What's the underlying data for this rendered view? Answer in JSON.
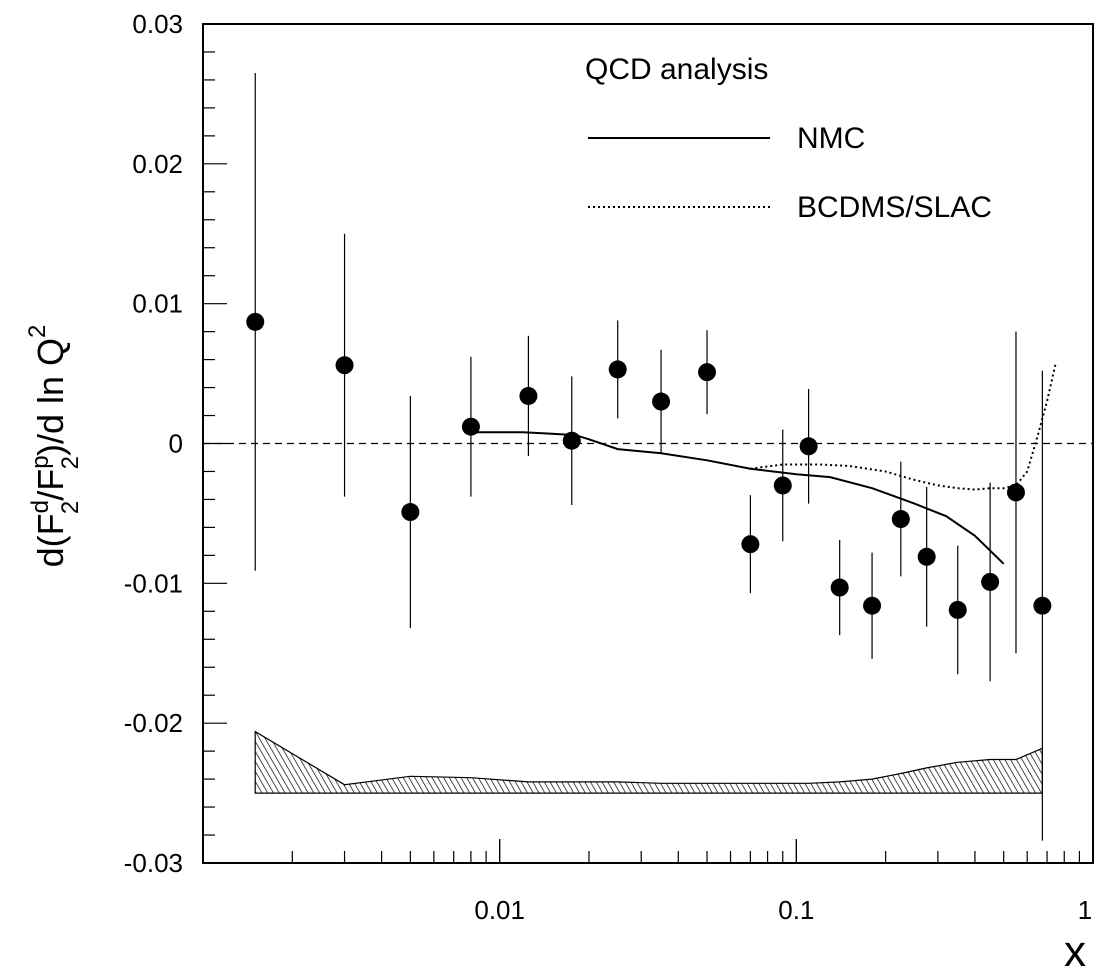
{
  "chart_data": {
    "type": "scatter",
    "xscale": "log",
    "xlim": [
      0.001,
      1
    ],
    "ylim": [
      -0.03,
      0.03
    ],
    "xlabel": "x",
    "ylabel": {
      "prefix": "d(F",
      "num_sup": "d",
      "num_sub": "2",
      "mid": "/F",
      "den_sup": "p",
      "den_sub": "2",
      "suffix": ")/d ln Q",
      "q_sup": "2"
    },
    "legend": {
      "title": "QCD analysis",
      "placement": "top-right",
      "entries": [
        {
          "label": "NMC",
          "style": "solid"
        },
        {
          "label": "BCDMS/SLAC",
          "style": "dotted"
        }
      ]
    },
    "x_ticks": [
      {
        "value": 0.01,
        "label": "0.01"
      },
      {
        "value": 0.1,
        "label": "0.1"
      },
      {
        "value": 1,
        "label": "1"
      }
    ],
    "y_ticks": [
      {
        "value": 0.03,
        "label": "0.03"
      },
      {
        "value": 0.02,
        "label": "0.02"
      },
      {
        "value": 0.01,
        "label": "0.01"
      },
      {
        "value": 0,
        "label": "0"
      },
      {
        "value": -0.01,
        "label": "-0.01"
      },
      {
        "value": -0.02,
        "label": "-0.02"
      },
      {
        "value": -0.03,
        "label": "-0.03"
      }
    ],
    "zero_line": true,
    "points": [
      {
        "x": 0.0015,
        "y": 0.0087,
        "err": 0.0178
      },
      {
        "x": 0.003,
        "y": 0.0056,
        "err": 0.0094
      },
      {
        "x": 0.005,
        "y": -0.0049,
        "err": 0.0083
      },
      {
        "x": 0.008,
        "y": 0.0012,
        "err": 0.005
      },
      {
        "x": 0.0125,
        "y": 0.0034,
        "err": 0.0043
      },
      {
        "x": 0.0175,
        "y": 0.0002,
        "err": 0.0046
      },
      {
        "x": 0.025,
        "y": 0.0053,
        "err": 0.0035
      },
      {
        "x": 0.035,
        "y": 0.003,
        "err": 0.0037
      },
      {
        "x": 0.05,
        "y": 0.0051,
        "err": 0.003
      },
      {
        "x": 0.07,
        "y": -0.0072,
        "err": 0.0035
      },
      {
        "x": 0.09,
        "y": -0.003,
        "err": 0.004
      },
      {
        "x": 0.11,
        "y": -0.0002,
        "err": 0.0041
      },
      {
        "x": 0.14,
        "y": -0.0103,
        "err": 0.0034
      },
      {
        "x": 0.18,
        "y": -0.0116,
        "err": 0.0038
      },
      {
        "x": 0.225,
        "y": -0.0054,
        "err": 0.0041
      },
      {
        "x": 0.275,
        "y": -0.0081,
        "err": 0.005
      },
      {
        "x": 0.35,
        "y": -0.0119,
        "err": 0.0046
      },
      {
        "x": 0.45,
        "y": -0.0099,
        "err": 0.0071
      },
      {
        "x": 0.55,
        "y": -0.0035,
        "err": 0.0115
      },
      {
        "x": 0.675,
        "y": -0.0116,
        "err": 0.0168
      }
    ],
    "series": [
      {
        "name": "NMC",
        "style": "solid",
        "x": [
          0.008,
          0.012,
          0.015,
          0.018,
          0.02,
          0.025,
          0.035,
          0.05,
          0.07,
          0.1,
          0.13,
          0.18,
          0.25,
          0.32,
          0.4,
          0.5
        ],
        "y": [
          0.0008,
          0.0008,
          0.0007,
          0.0006,
          0.0003,
          -0.0004,
          -0.0007,
          -0.0012,
          -0.0018,
          -0.0022,
          -0.0024,
          -0.0032,
          -0.0043,
          -0.0052,
          -0.0066,
          -0.0086
        ]
      },
      {
        "name": "BCDMS/SLAC",
        "style": "dotted",
        "x": [
          0.07,
          0.09,
          0.12,
          0.15,
          0.2,
          0.25,
          0.3,
          0.35,
          0.4,
          0.45,
          0.5,
          0.55,
          0.6,
          0.65,
          0.7,
          0.75
        ],
        "y": [
          -0.0018,
          -0.0015,
          -0.0015,
          -0.0016,
          -0.002,
          -0.0026,
          -0.003,
          -0.0032,
          -0.0033,
          -0.0032,
          -0.0032,
          -0.003,
          -0.002,
          0.0005,
          0.003,
          0.0058
        ]
      }
    ],
    "systematic_band": {
      "baseline": -0.025,
      "x": [
        0.0015,
        0.003,
        0.005,
        0.008,
        0.0125,
        0.0175,
        0.025,
        0.035,
        0.05,
        0.07,
        0.09,
        0.11,
        0.14,
        0.18,
        0.225,
        0.275,
        0.35,
        0.45,
        0.55,
        0.675
      ],
      "y": [
        -0.0206,
        -0.0244,
        -0.0238,
        -0.0239,
        -0.0242,
        -0.0242,
        -0.0242,
        -0.0243,
        -0.0243,
        -0.0243,
        -0.0243,
        -0.0243,
        -0.0242,
        -0.024,
        -0.0236,
        -0.0232,
        -0.0228,
        -0.0226,
        -0.0226,
        -0.0218
      ]
    }
  }
}
